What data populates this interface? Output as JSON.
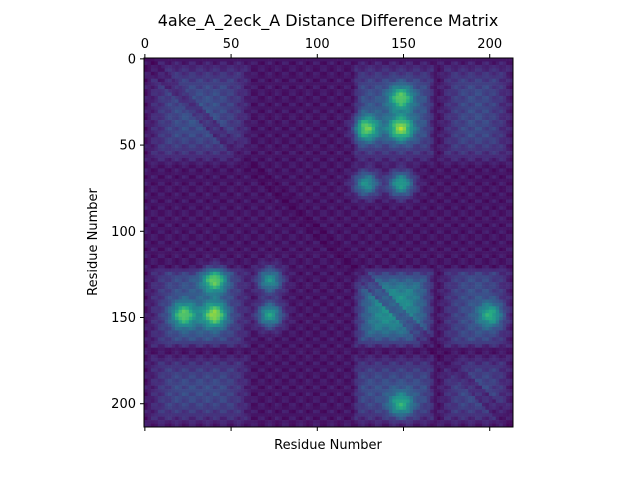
{
  "chart_data": {
    "type": "heatmap",
    "title": "4ake_A_2eck_A Distance Difference Matrix",
    "xlabel": "Residue Number",
    "ylabel": "Residue Number",
    "n_residues": 214,
    "xlim": [
      0,
      213
    ],
    "ylim": [
      213,
      0
    ],
    "x_ticks": [
      "0",
      "50",
      "100",
      "150",
      "200"
    ],
    "y_ticks": [
      "0",
      "50",
      "100",
      "150",
      "200"
    ],
    "x_tick_positions": [
      0,
      50,
      100,
      150,
      200
    ],
    "y_tick_positions": [
      0,
      50,
      100,
      150,
      200
    ],
    "x_bottom_ticks_labeled": false,
    "colormap": "viridis",
    "value_range": [
      0,
      1
    ],
    "symmetric": true,
    "bands": [
      {
        "residues": [
          120,
          168
        ],
        "intensity": 0.75
      },
      {
        "residues": [
          0,
          62
        ],
        "intensity": 0.35
      },
      {
        "residues": [
          170,
          213
        ],
        "intensity": 0.3
      }
    ],
    "hotspots": [
      {
        "row": 148,
        "col": 40,
        "value": 1.0
      },
      {
        "row": 40,
        "col": 148,
        "value": 1.0
      },
      {
        "row": 128,
        "col": 40,
        "value": 0.9
      },
      {
        "row": 40,
        "col": 128,
        "value": 0.9
      },
      {
        "row": 148,
        "col": 22,
        "value": 0.85
      },
      {
        "row": 22,
        "col": 148,
        "value": 0.85
      },
      {
        "row": 72,
        "col": 148,
        "value": 0.85
      },
      {
        "row": 148,
        "col": 72,
        "value": 0.85
      },
      {
        "row": 128,
        "col": 72,
        "value": 0.75
      },
      {
        "row": 72,
        "col": 128,
        "value": 0.75
      },
      {
        "row": 148,
        "col": 200,
        "value": 0.7
      },
      {
        "row": 200,
        "col": 148,
        "value": 0.7
      }
    ]
  }
}
